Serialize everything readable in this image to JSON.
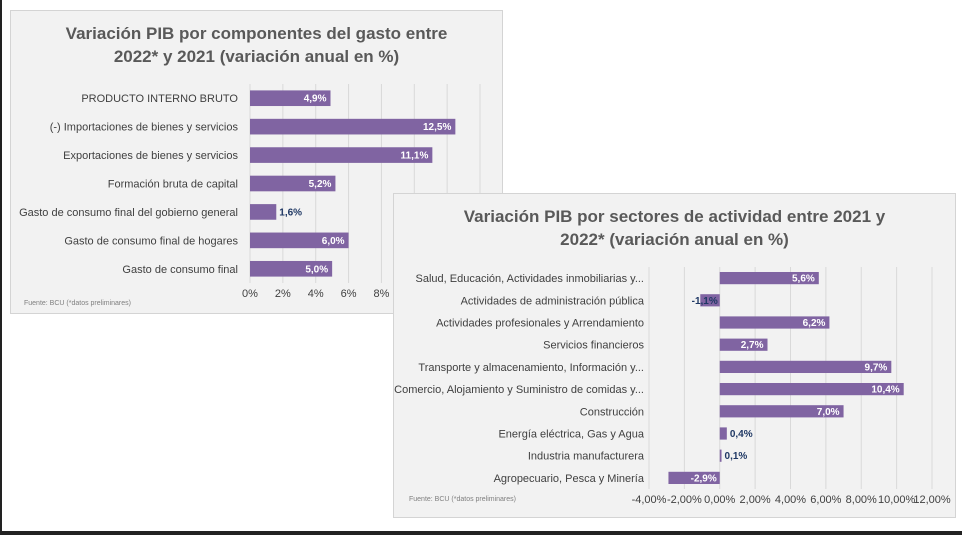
{
  "colors": {
    "bar": "#8064a2",
    "grid": "#d9d9d9",
    "label_inside": "#ffffff",
    "label_outside": "#1f3864"
  },
  "chart_data": [
    {
      "type": "bar",
      "orientation": "horizontal",
      "title": "Variación PIB por componentes del gasto entre\n2022* y 2021 (variación anual en %)",
      "source": "Fuente: BCU (*datos preliminares)",
      "categories": [
        "PRODUCTO INTERNO BRUTO",
        "(-) Importaciones de bienes y servicios",
        "Exportaciones de bienes y servicios",
        "Formación bruta de capital",
        "Gasto de consumo final del gobierno general",
        "Gasto de consumo final de hogares",
        "Gasto de consumo final"
      ],
      "values": [
        4.9,
        12.5,
        11.1,
        5.2,
        1.6,
        6.0,
        5.0
      ],
      "data_labels": [
        "4,9%",
        "12,5%",
        "11,1%",
        "5,2%",
        "1,6%",
        "6,0%",
        "5,0%"
      ],
      "x_ticks": [
        "0%",
        "2%",
        "4%",
        "6%",
        "8%"
      ],
      "xlim": [
        0,
        14
      ],
      "grid": true,
      "legend": "none"
    },
    {
      "type": "bar",
      "orientation": "horizontal",
      "title": "Variación PIB por sectores de actividad entre 2021 y\n2022* (variación anual en %)",
      "source": "Fuente: BCU (*datos preliminares)",
      "categories": [
        "Salud, Educación, Actividades inmobiliarias y...",
        "Actividades de administración pública",
        "Actividades profesionales y Arrendamiento",
        "Servicios financieros",
        "Transporte y almacenamiento, Información y...",
        "Comercio,  Alojamiento y Suministro de comidas y...",
        "Construcción",
        "Energía eléctrica, Gas y Agua",
        "Industria manufacturera",
        "Agropecuario, Pesca y Minería"
      ],
      "values": [
        5.6,
        -1.1,
        6.2,
        2.7,
        9.7,
        10.4,
        7.0,
        0.4,
        0.1,
        -2.9
      ],
      "data_labels": [
        "5,6%",
        "-1,1%",
        "6,2%",
        "2,7%",
        "9,7%",
        "10,4%",
        "7,0%",
        "0,4%",
        "0,1%",
        "-2,9%"
      ],
      "x_ticks": [
        "-4,00%",
        "-2,00%",
        "0,00%",
        "2,00%",
        "4,00%",
        "6,00%",
        "8,00%",
        "10,00%",
        "12,00%"
      ],
      "xlim": [
        -4,
        12
      ],
      "grid": true,
      "legend": "none"
    }
  ]
}
